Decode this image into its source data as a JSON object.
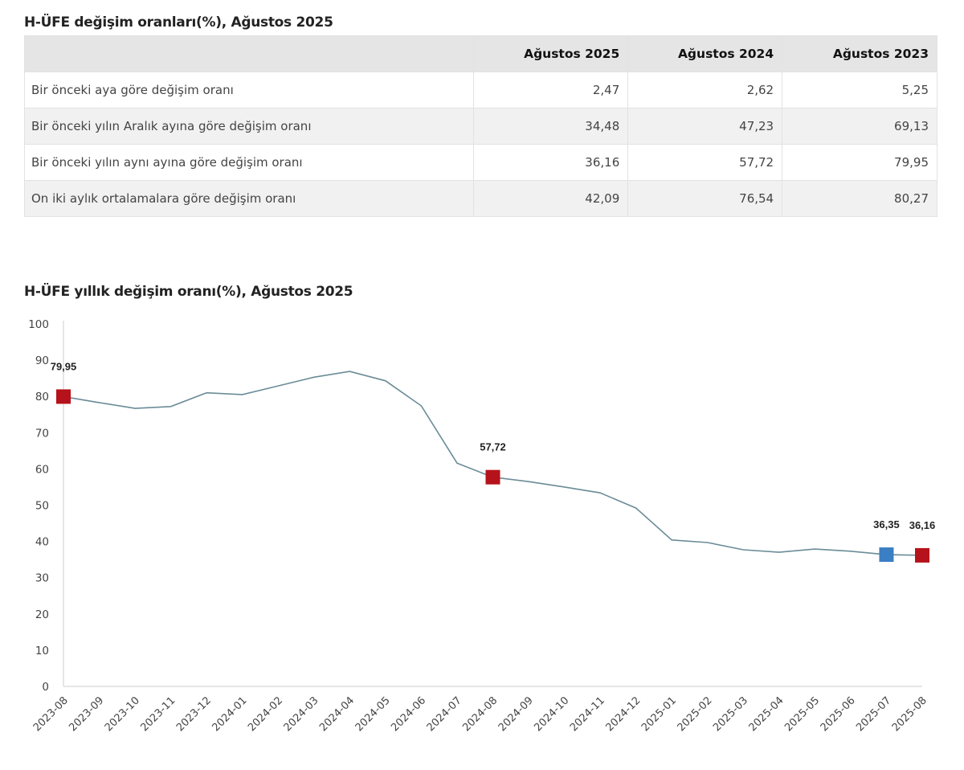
{
  "table": {
    "title": "H-ÜFE değişim oranları(%), Ağustos 2025",
    "columns": [
      "",
      "Ağustos 2025",
      "Ağustos 2024",
      "Ağustos 2023"
    ],
    "rows": [
      {
        "label": "Bir önceki aya göre değişim oranı",
        "values": [
          "2,47",
          "2,62",
          "5,25"
        ]
      },
      {
        "label": "Bir önceki yılın Aralık ayına göre değişim oranı",
        "values": [
          "34,48",
          "47,23",
          "69,13"
        ]
      },
      {
        "label": "Bir önceki yılın aynı ayına göre değişim oranı",
        "values": [
          "36,16",
          "57,72",
          "79,95"
        ]
      },
      {
        "label": "On iki aylık ortalamalara göre değişim oranı",
        "values": [
          "42,09",
          "76,54",
          "80,27"
        ]
      }
    ]
  },
  "chart_data": {
    "type": "line",
    "title": "H-ÜFE yıllık değişim oranı(%), Ağustos 2025",
    "xlabel": "",
    "ylabel": "",
    "ylim": [
      0,
      100
    ],
    "yticks": [
      0,
      10,
      20,
      30,
      40,
      50,
      60,
      70,
      80,
      90,
      100
    ],
    "grid": false,
    "categories": [
      "2023-08",
      "2023-09",
      "2023-10",
      "2023-11",
      "2023-12",
      "2024-01",
      "2024-02",
      "2024-03",
      "2024-04",
      "2024-05",
      "2024-06",
      "2024-07",
      "2024-08",
      "2024-09",
      "2024-10",
      "2024-11",
      "2024-12",
      "2025-01",
      "2025-02",
      "2025-03",
      "2025-04",
      "2025-05",
      "2025-06",
      "2025-07",
      "2025-08"
    ],
    "series": [
      {
        "name": "H-ÜFE yıllık değişim oranı",
        "color": "#6b8c98",
        "values": [
          79.95,
          78.3,
          76.7,
          77.2,
          81.0,
          80.5,
          82.9,
          85.3,
          86.9,
          84.3,
          77.4,
          61.6,
          57.72,
          56.5,
          55.0,
          53.4,
          49.2,
          40.4,
          39.7,
          37.7,
          37.0,
          37.9,
          37.3,
          36.35,
          36.16
        ]
      }
    ],
    "highlighted_points": [
      {
        "category": "2023-08",
        "value": 79.95,
        "label": "79,95",
        "color": "#b5121b"
      },
      {
        "category": "2024-08",
        "value": 57.72,
        "label": "57,72",
        "color": "#b5121b"
      },
      {
        "category": "2025-07",
        "value": 36.35,
        "label": "36,35",
        "color": "#3a7fc4"
      },
      {
        "category": "2025-08",
        "value": 36.16,
        "label": "36,16",
        "color": "#b5121b"
      }
    ]
  }
}
